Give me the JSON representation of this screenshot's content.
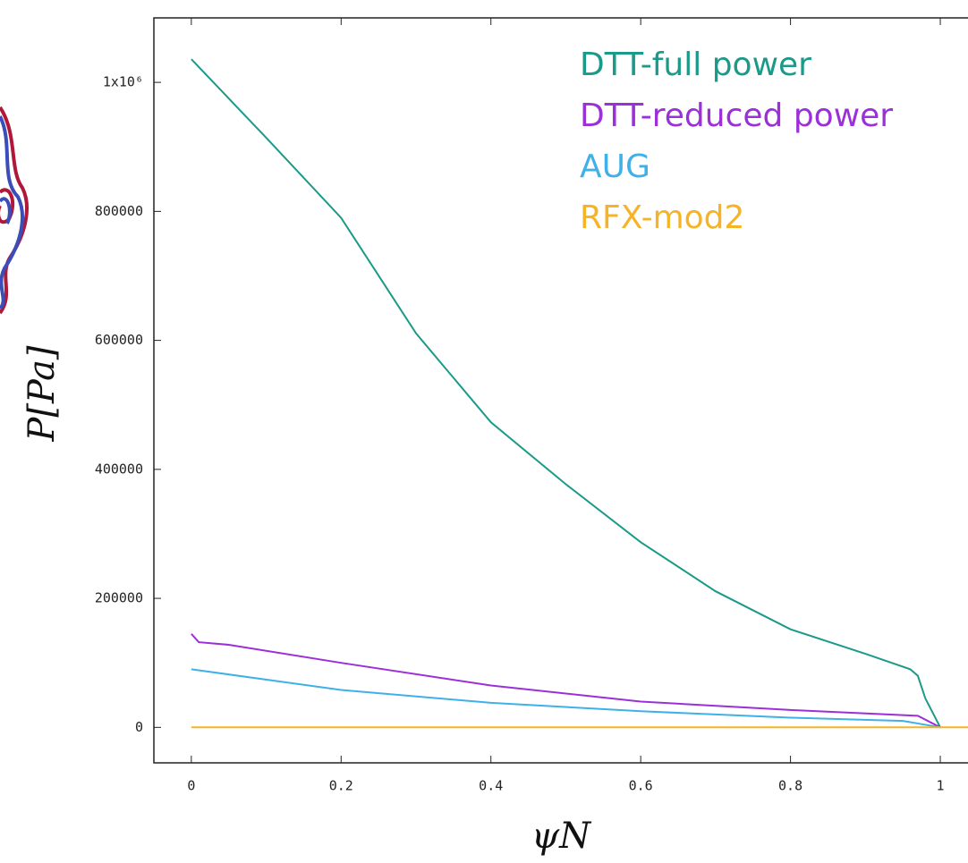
{
  "chart_data": {
    "type": "line",
    "xlabel": "ψN",
    "ylabel": "P[Pa]",
    "xlim": [
      -0.05,
      1.037
    ],
    "ylim": [
      -55000,
      1100000
    ],
    "xticks": [
      0,
      0.2,
      0.4,
      0.6,
      0.8,
      1
    ],
    "yticks": [
      0,
      200000,
      400000,
      600000,
      800000,
      {
        "value": 1000000,
        "label": "1x10⁶"
      }
    ],
    "grid": false,
    "legend": "upper right",
    "series": [
      {
        "name": "DTT-full power",
        "color": "#1a9a88",
        "x": [
          0,
          0.1,
          0.2,
          0.3,
          0.4,
          0.5,
          0.6,
          0.7,
          0.8,
          0.9,
          0.96,
          0.97,
          0.98,
          1.0
        ],
        "values": [
          1036000,
          914000,
          790000,
          611000,
          473000,
          377000,
          287000,
          211000,
          152000,
          114000,
          90000,
          80000,
          45000,
          0
        ]
      },
      {
        "name": "DTT-reduced power",
        "color": "#9b30d9",
        "x": [
          0,
          0.01,
          0.05,
          0.2,
          0.4,
          0.6,
          0.8,
          0.97,
          1.0
        ],
        "values": [
          145000,
          132000,
          128000,
          100000,
          65000,
          40000,
          27000,
          18000,
          0
        ]
      },
      {
        "name": "AUG",
        "color": "#3fb0e8",
        "x": [
          0,
          0.2,
          0.4,
          0.6,
          0.8,
          0.95,
          1.0
        ],
        "values": [
          90000,
          58000,
          38000,
          25000,
          15000,
          10000,
          0
        ]
      },
      {
        "name": "RFX-mod2",
        "color": "#f5b325",
        "x": [
          0,
          1.0,
          1.037
        ],
        "values": [
          0,
          0,
          0
        ]
      }
    ]
  }
}
